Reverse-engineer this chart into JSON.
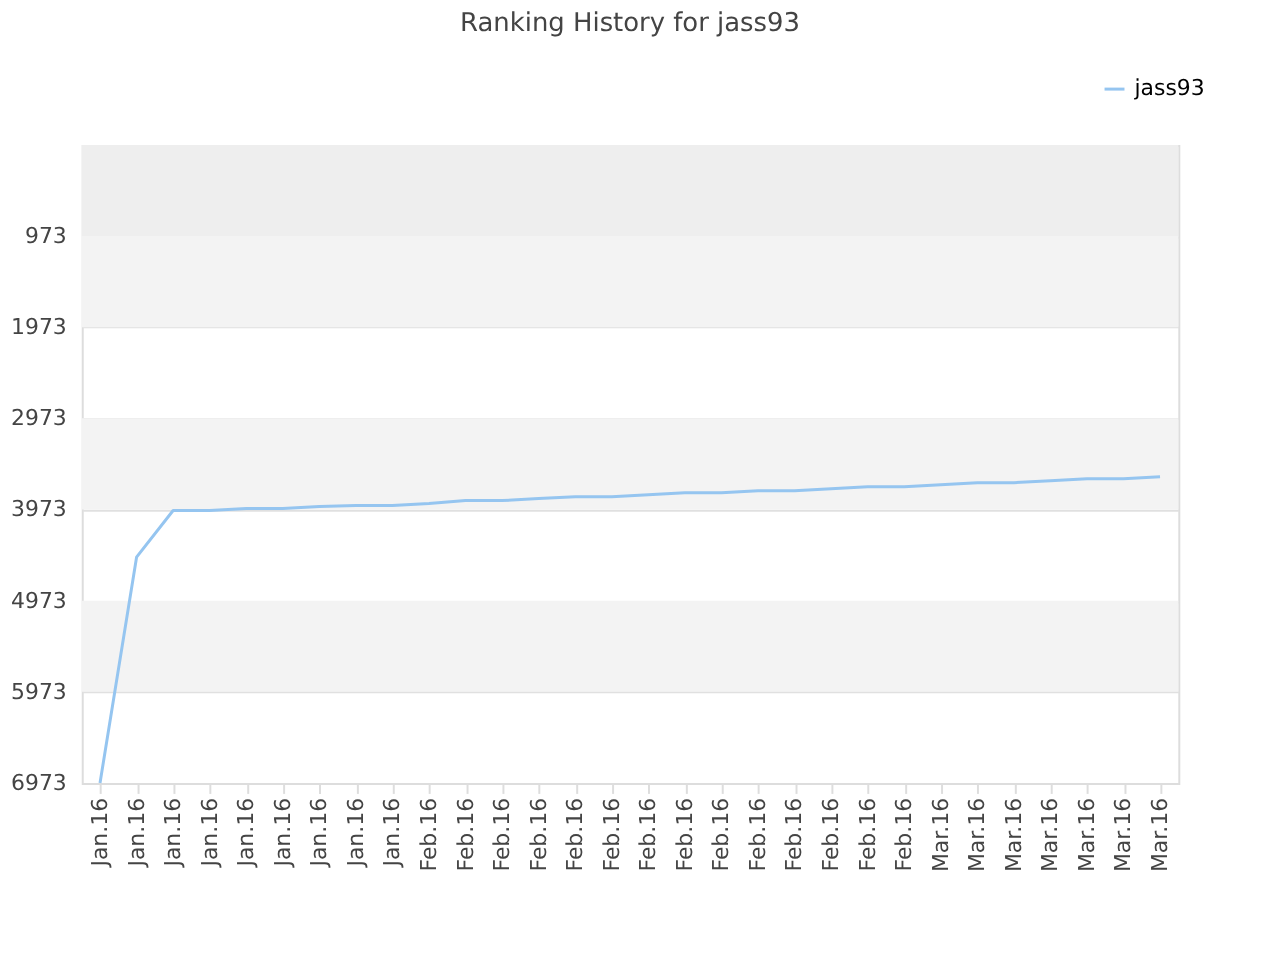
{
  "chart_data": {
    "type": "line",
    "title": "Ranking History for jass93",
    "categories": [
      "Jan.16",
      "Jan.16",
      "Jan.16",
      "Jan.16",
      "Jan.16",
      "Jan.16",
      "Jan.16",
      "Jan.16",
      "Jan.16",
      "Feb.16",
      "Feb.16",
      "Feb.16",
      "Feb.16",
      "Feb.16",
      "Feb.16",
      "Feb.16",
      "Feb.16",
      "Feb.16",
      "Feb.16",
      "Feb.16",
      "Feb.16",
      "Feb.16",
      "Feb.16",
      "Mar.16",
      "Mar.16",
      "Mar.16",
      "Mar.16",
      "Mar.16",
      "Mar.16",
      "Mar.16"
    ],
    "series": [
      {
        "name": "jass93",
        "color": "#95c5f0",
        "values": [
          6973,
          4496,
          3984,
          3984,
          3962,
          3962,
          3940,
          3930,
          3930,
          3908,
          3875,
          3875,
          3853,
          3832,
          3832,
          3810,
          3788,
          3788,
          3766,
          3766,
          3745,
          3723,
          3723,
          3701,
          3679,
          3679,
          3658,
          3636,
          3636,
          3614
        ]
      }
    ],
    "ylim": [
      6973,
      -27
    ],
    "yticks": [
      973,
      1973,
      2973,
      3973,
      4973,
      5973,
      6973
    ],
    "bands": [
      {
        "axis": "y",
        "from": -27,
        "to": 973,
        "color": "#eeeeee"
      },
      {
        "axis": "y",
        "from": 973,
        "to": 1973,
        "color": "#f3f3f3"
      },
      {
        "axis": "y",
        "from": 2973,
        "to": 3973,
        "color": "#f3f3f3"
      },
      {
        "axis": "y",
        "from": 4973,
        "to": 5973,
        "color": "#f3f3f3"
      }
    ],
    "grid": "y",
    "legend": "top right"
  }
}
